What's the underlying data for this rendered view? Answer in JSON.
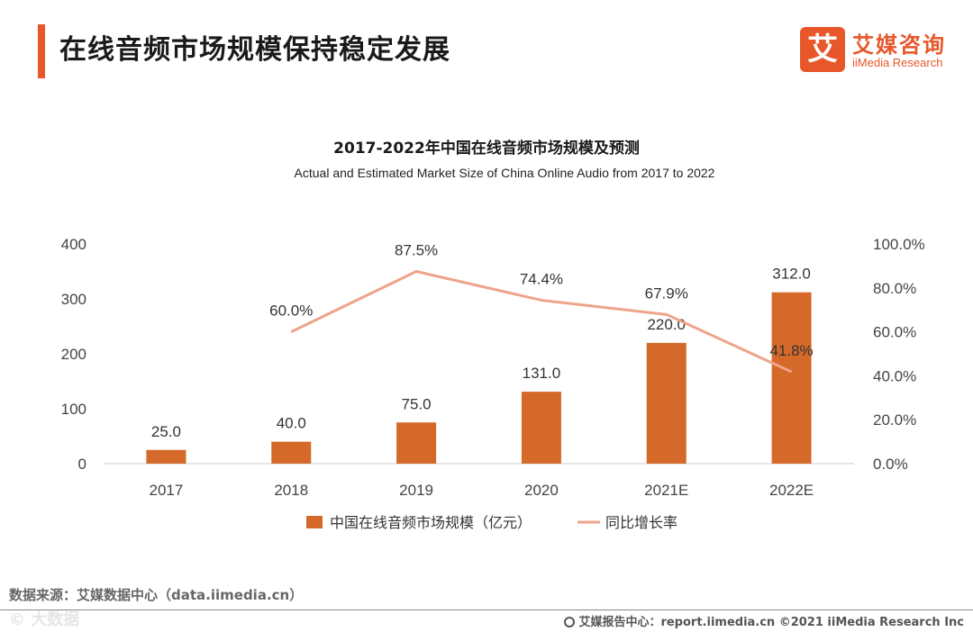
{
  "header": {
    "title": "在线音频市场规模保持稳定发展",
    "logo_mark": "艾",
    "logo_cn": "艾媒咨询",
    "logo_en": "iiMedia Research"
  },
  "chart_data": {
    "type": "bar",
    "title": "2017-2022年中国在线音频市场规模及预测",
    "subtitle": "Actual and Estimated Market Size of China Online Audio from 2017 to 2022",
    "categories": [
      "2017",
      "2018",
      "2019",
      "2020",
      "2021E",
      "2022E"
    ],
    "series": [
      {
        "name": "中国在线音频市场规模（亿元）",
        "type": "bar",
        "axis": "left",
        "color": "#d4692a",
        "values": [
          25.0,
          40.0,
          75.0,
          131.0,
          220.0,
          312.0
        ],
        "labels": [
          "25.0",
          "40.0",
          "75.0",
          "131.0",
          "220.0",
          "312.0"
        ]
      },
      {
        "name": "同比增长率",
        "type": "line",
        "axis": "right",
        "color": "#eea48a",
        "values": [
          null,
          60.0,
          87.5,
          74.4,
          67.9,
          41.8
        ],
        "labels": [
          "",
          "60.0%",
          "87.5%",
          "74.4%",
          "67.9%",
          "41.8%"
        ]
      }
    ],
    "ylim_left": [
      0,
      400
    ],
    "yticks_left": [
      "0",
      "100",
      "200",
      "300",
      "400"
    ],
    "ylim_right": [
      0,
      100
    ],
    "yticks_right": [
      "0.0%",
      "20.0%",
      "40.0%",
      "60.0%",
      "80.0%",
      "100.0%"
    ],
    "grid": false,
    "legend": "bottom"
  },
  "footer": {
    "source": "数据来源：艾媒数据中心（data.iimedia.cn）",
    "right": "艾媒报告中心：report.iimedia.cn   ©2021  iiMedia Research  Inc",
    "watermark": "© 大数据"
  }
}
